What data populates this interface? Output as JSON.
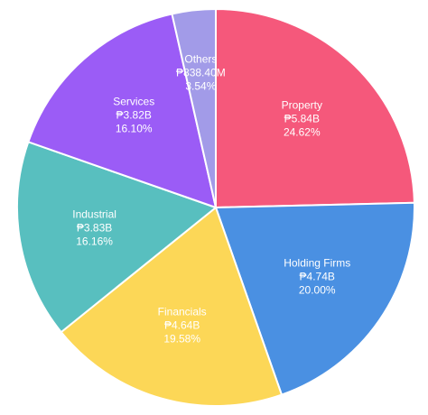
{
  "chart_data": {
    "type": "pie",
    "categories": [
      "Property",
      "Holding Firms",
      "Financials",
      "Industrial",
      "Services",
      "Others"
    ],
    "amounts": [
      "₱5.84B",
      "₱4.74B",
      "₱4.64B",
      "₱3.83B",
      "₱3.82B",
      "₱838.40M"
    ],
    "values": [
      24.62,
      20.0,
      19.58,
      16.16,
      16.1,
      3.54
    ],
    "value_labels": [
      "24.62%",
      "20.00%",
      "19.58%",
      "16.16%",
      "16.10%",
      "3.54%"
    ],
    "colors": [
      "#f5587b",
      "#4a90e2",
      "#fcd757",
      "#58bfbf",
      "#9b5cf6",
      "#a29be8"
    ]
  }
}
